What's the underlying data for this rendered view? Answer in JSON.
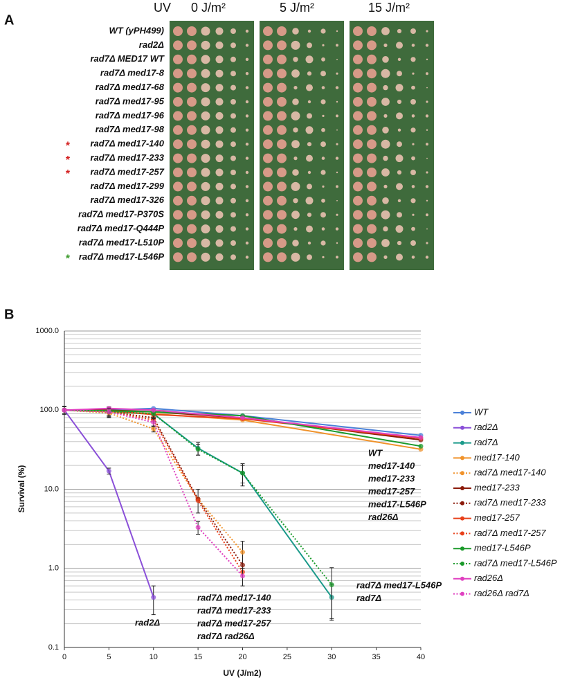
{
  "panel_a": {
    "label": "A",
    "uv_label": "UV",
    "doses": [
      "0 J/m²",
      "5 J/m²",
      "15 J/m²"
    ],
    "strains": [
      {
        "name": "WT (yPH499)"
      },
      {
        "name": "rad2Δ"
      },
      {
        "name": "rad7Δ MED17 WT"
      },
      {
        "name": "rad7Δ med17-8"
      },
      {
        "name": "rad7Δ med17-68"
      },
      {
        "name": "rad7Δ med17-95"
      },
      {
        "name": "rad7Δ med17-96"
      },
      {
        "name": "rad7Δ med17-98"
      },
      {
        "name": "rad7Δ med17-140",
        "star": "*",
        "star_color": "#d42020"
      },
      {
        "name": "rad7Δ med17-233",
        "star": "*",
        "star_color": "#d42020"
      },
      {
        "name": "rad7Δ med17-257",
        "star": "*",
        "star_color": "#d42020"
      },
      {
        "name": "rad7Δ med17-299"
      },
      {
        "name": "rad7Δ med17-326"
      },
      {
        "name": "rad7Δ med17-P370S"
      },
      {
        "name": "rad7Δ med17-Q444P"
      },
      {
        "name": "rad7Δ med17-L510P"
      },
      {
        "name": "rad7Δ med17-L546P",
        "star": "*",
        "star_color": "#3a9a2a"
      }
    ]
  },
  "chart_data": {
    "type": "line",
    "panel_label": "B",
    "x_label": "UV (J/m2)",
    "y_label": "Survival (%)",
    "log_y": true,
    "grid": true,
    "xlim": [
      0,
      40
    ],
    "xticks": [
      0,
      5,
      10,
      15,
      20,
      25,
      30,
      35,
      40
    ],
    "ylim": [
      0.1,
      1000
    ],
    "yticks": [
      0.1,
      {
        "value": 1,
        "label": "1.0"
      },
      {
        "value": 10,
        "label": "10.0"
      },
      {
        "value": 100,
        "label": "100.0"
      },
      {
        "value": 1000,
        "label": "1000.0"
      }
    ],
    "series": [
      {
        "name": "WT",
        "color": "#4a80d8",
        "dash": false,
        "x": [
          0,
          5,
          10,
          20,
          40
        ],
        "values": [
          100,
          100,
          105,
          85,
          48
        ]
      },
      {
        "name": "rad2Δ",
        "color": "#8a4fd8",
        "dash": false,
        "x": [
          0,
          5,
          10
        ],
        "values": [
          100,
          17,
          0.43
        ],
        "errors": [
          10,
          1.5,
          0.17
        ]
      },
      {
        "name": "rad7Δ",
        "color": "#1a9a8a",
        "dash": false,
        "x": [
          0,
          5,
          10,
          15,
          20,
          30
        ],
        "values": [
          100,
          95,
          90,
          33,
          16,
          0.43
        ],
        "errors": [
          12,
          15,
          12,
          6,
          4,
          0.2
        ]
      },
      {
        "name": "med17-140",
        "color": "#f0922a",
        "dash": false,
        "x": [
          0,
          5,
          10,
          20,
          40
        ],
        "values": [
          100,
          95,
          90,
          75,
          32
        ]
      },
      {
        "name": "rad7Δ med17-140",
        "color": "#f0922a",
        "dash": true,
        "x": [
          0,
          5,
          10,
          15,
          20
        ],
        "values": [
          100,
          92,
          58,
          7.5,
          1.6
        ],
        "errors": [
          10,
          10,
          5,
          2.5,
          0.6
        ]
      },
      {
        "name": "med17-233",
        "color": "#8b1a0a",
        "dash": false,
        "x": [
          0,
          5,
          10,
          20,
          40
        ],
        "values": [
          100,
          100,
          95,
          80,
          42
        ]
      },
      {
        "name": "rad7Δ med17-233",
        "color": "#8b1a0a",
        "dash": true,
        "x": [
          0,
          5,
          10,
          15,
          20
        ],
        "values": [
          100,
          95,
          80,
          7.5,
          1.1
        ]
      },
      {
        "name": "med17-257",
        "color": "#e8401a",
        "dash": false,
        "x": [
          0,
          5,
          10,
          20,
          40
        ],
        "values": [
          100,
          98,
          88,
          78,
          44
        ]
      },
      {
        "name": "rad7Δ med17-257",
        "color": "#e8401a",
        "dash": true,
        "x": [
          0,
          5,
          10,
          15,
          20
        ],
        "values": [
          100,
          95,
          75,
          7.2,
          0.9
        ]
      },
      {
        "name": "med17-L546P",
        "color": "#1a9a2a",
        "dash": false,
        "x": [
          0,
          5,
          10,
          20,
          40
        ],
        "values": [
          100,
          98,
          95,
          85,
          35
        ]
      },
      {
        "name": "rad7Δ med17-L546P",
        "color": "#1a9a2a",
        "dash": true,
        "x": [
          0,
          5,
          10,
          15,
          20,
          30
        ],
        "values": [
          100,
          96,
          90,
          32,
          16,
          0.62
        ],
        "errors": [
          10,
          12,
          10,
          5,
          5,
          0.4
        ]
      },
      {
        "name": "rad26Δ",
        "color": "#e040c0",
        "dash": false,
        "x": [
          0,
          5,
          10,
          20,
          40
        ],
        "values": [
          100,
          105,
          100,
          80,
          45
        ]
      },
      {
        "name": "rad26Δ rad7Δ",
        "color": "#e040c0",
        "dash": true,
        "x": [
          0,
          5,
          10,
          15,
          20
        ],
        "values": [
          100,
          95,
          70,
          3.3,
          0.8
        ],
        "errors": [
          10,
          10,
          8,
          0.6,
          0.2
        ]
      }
    ],
    "annotations": [
      [
        "WT",
        "med17-140",
        "med17-233",
        "med17-257",
        "med17-L546P",
        "rad26Δ"
      ],
      [
        "rad7Δ med17-L546P",
        "rad7Δ"
      ],
      [
        "rad7Δ med17-140",
        "rad7Δ med17-233",
        "rad7Δ med17-257",
        "rad7Δ rad26Δ"
      ],
      [
        "rad2Δ"
      ]
    ]
  }
}
